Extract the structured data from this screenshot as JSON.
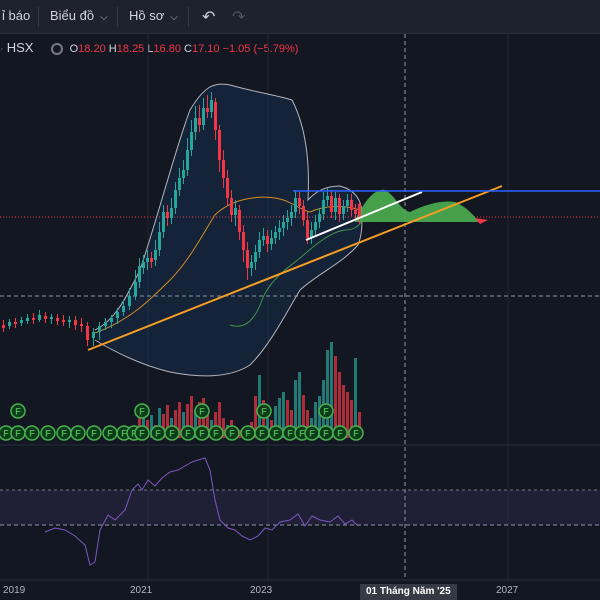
{
  "toolbar": {
    "indicators_label": "ỉ báo",
    "charts_label": "Biểu đồ",
    "profile_label": "Hồ sơ",
    "undo_icon": "undo-icon",
    "redo_icon": "redo-icon"
  },
  "legend": {
    "exchange": "HSX",
    "open_label": "O",
    "open": "18.20",
    "high_label": "H",
    "high": "18.25",
    "low_label": "L",
    "low": "16.80",
    "close_label": "C",
    "close": "17.10",
    "change": "−1.05 (−5.79%)"
  },
  "time_axis": {
    "labels": [
      "2019",
      "2021",
      "2023",
      "2027"
    ],
    "crosshair_date": "01 Tháng Năm '25"
  },
  "colors": {
    "up": "#26a69a",
    "down": "#f23645",
    "trendline": "#f59d24",
    "horizontal_line": "#2962ff",
    "bollinger": "#b2b5be",
    "rsi": "#7e57c2",
    "cloud": "#4caf50"
  },
  "chart_data": {
    "type": "candlestick",
    "series_ohlc_last": {
      "open": 18.2,
      "high": 18.25,
      "low": 16.8,
      "close": 17.1
    },
    "volume_markers": "F"
  }
}
